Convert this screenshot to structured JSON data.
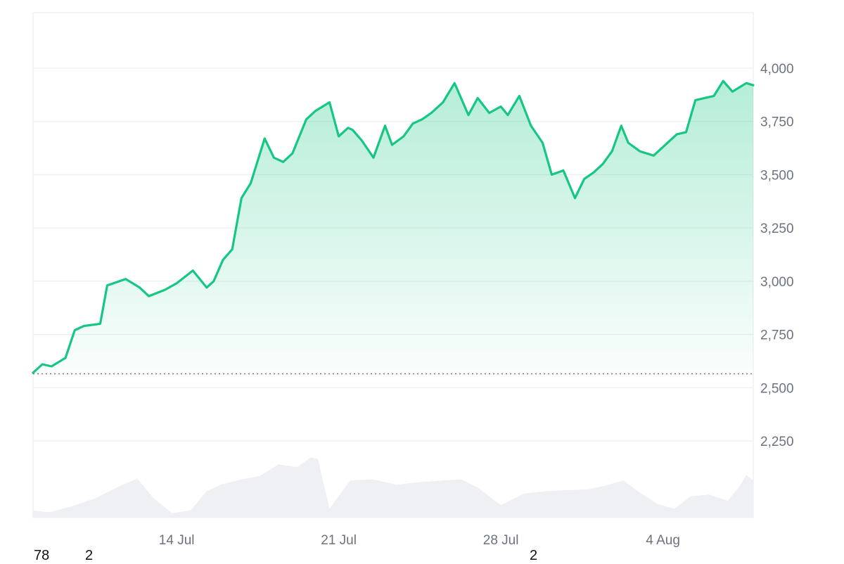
{
  "chart_data": {
    "type": "area",
    "title": "",
    "xlabel": "",
    "ylabel": "",
    "ylim": [
      2000,
      4250
    ],
    "yticks": [
      "2,250",
      "2,500",
      "2,750",
      "3,000",
      "3,250",
      "3,500",
      "3,750",
      "4,000"
    ],
    "ytick_values": [
      2250,
      2500,
      2750,
      3000,
      3250,
      3500,
      3750,
      4000
    ],
    "xticks": [
      "14 Jul",
      "21 Jul",
      "28 Jul",
      "4 Aug"
    ],
    "xtick_values": [
      14,
      21,
      28,
      35
    ],
    "x_domain": [
      7.8,
      38.9
    ],
    "baseline_value": 2565,
    "series": [
      {
        "x": [
          7.8,
          8.2,
          8.6,
          9.2,
          9.6,
          10.0,
          10.7,
          11.0,
          11.8,
          12.4,
          12.8,
          13.5,
          14.0,
          14.7,
          15.3,
          15.6,
          16.0,
          16.4,
          16.8,
          17.2,
          17.8,
          18.2,
          18.6,
          19.0,
          19.6,
          20.0,
          20.6,
          21.0,
          21.4,
          21.6,
          22.0,
          22.5,
          23.0,
          23.3,
          23.8,
          24.2,
          24.6,
          25.0,
          25.5,
          26.0,
          26.6,
          27.0,
          27.5,
          28.0,
          28.3,
          28.8,
          29.3,
          29.8,
          30.2,
          30.7,
          31.2,
          31.6,
          32.0,
          32.4,
          32.8,
          33.2,
          33.5,
          34.0,
          34.6,
          35.0,
          35.6,
          36.0,
          36.4,
          36.8,
          37.2,
          37.6,
          38.0,
          38.3,
          38.6,
          38.9
        ],
        "values": [
          2570,
          2610,
          2600,
          2640,
          2770,
          2790,
          2800,
          2980,
          3010,
          2970,
          2930,
          2960,
          2990,
          3050,
          2970,
          3000,
          3100,
          3150,
          3390,
          3460,
          3670,
          3580,
          3560,
          3600,
          3760,
          3800,
          3840,
          3680,
          3720,
          3710,
          3660,
          3580,
          3730,
          3640,
          3680,
          3740,
          3760,
          3790,
          3840,
          3930,
          3780,
          3860,
          3790,
          3820,
          3780,
          3870,
          3730,
          3650,
          3500,
          3520,
          3390,
          3480,
          3510,
          3550,
          3610,
          3730,
          3650,
          3610,
          3590,
          3630,
          3690,
          3700,
          3850,
          3860,
          3870,
          3940,
          3890,
          3910,
          3930,
          3920
        ]
      }
    ],
    "volume": {
      "x": [
        7.8,
        8.5,
        9.5,
        10.5,
        11.5,
        12.3,
        13.0,
        13.8,
        14.6,
        15.3,
        16.0,
        16.8,
        17.6,
        18.4,
        19.2,
        19.8,
        20.1,
        20.6,
        21.5,
        22.5,
        23.5,
        24.5,
        25.5,
        26.3,
        27.0,
        28.0,
        29.0,
        30.0,
        31.0,
        31.8,
        32.5,
        33.3,
        34.0,
        34.8,
        35.5,
        36.2,
        37.0,
        37.8,
        38.3,
        38.6,
        38.9
      ],
      "values": [
        0.08,
        0.06,
        0.13,
        0.22,
        0.35,
        0.44,
        0.22,
        0.05,
        0.08,
        0.3,
        0.38,
        0.43,
        0.47,
        0.6,
        0.57,
        0.68,
        0.66,
        0.1,
        0.42,
        0.43,
        0.37,
        0.4,
        0.42,
        0.43,
        0.34,
        0.14,
        0.27,
        0.3,
        0.31,
        0.32,
        0.36,
        0.42,
        0.28,
        0.15,
        0.1,
        0.24,
        0.26,
        0.19,
        0.35,
        0.48,
        0.42
      ]
    },
    "colors": {
      "line": "#16c784",
      "area_top": "#16c784",
      "volume": "#eef0f3",
      "grid": "#e9ebee",
      "baseline": "#6b7280"
    },
    "grid": true
  },
  "footer": {
    "left_value": "78",
    "second_value": "2",
    "right_value": "2"
  }
}
